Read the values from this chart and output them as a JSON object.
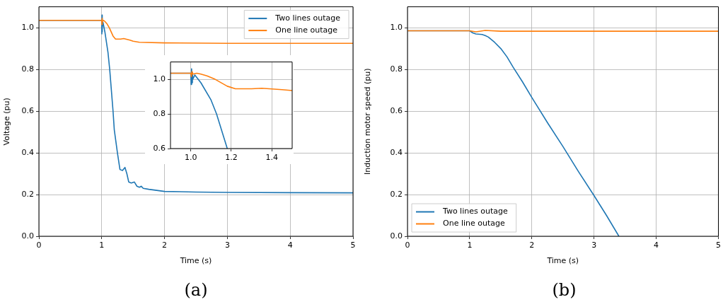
{
  "chart_data": [
    {
      "type": "line",
      "xlabel": "Time (s)",
      "ylabel": "Voltage (pu)",
      "xlim": [
        0,
        5
      ],
      "xticks": [
        0,
        1,
        2,
        3,
        4,
        5
      ],
      "ylim": [
        0,
        1.1
      ],
      "yticks": [
        {
          "value": 0,
          "label": "0.0"
        },
        {
          "value": 0.2,
          "label": "0.2"
        },
        {
          "value": 0.4,
          "label": "0.4"
        },
        {
          "value": 0.6,
          "label": "0.6"
        },
        {
          "value": 0.8,
          "label": "0.8"
        },
        {
          "value": 1,
          "label": "1.0"
        }
      ],
      "grid": true,
      "legend": "top right",
      "annotations": [
        "(a)"
      ],
      "series": [
        {
          "name": "Two lines outage",
          "color": "#1f77b4",
          "x": [
            0,
            1.0,
            1.002,
            1.004,
            1.006,
            1.008,
            1.01,
            1.02,
            1.05,
            1.1,
            1.127,
            1.18,
            1.2,
            1.25,
            1.29,
            1.33,
            1.37,
            1.4,
            1.43,
            1.47,
            1.52,
            1.56,
            1.6,
            1.63,
            1.66,
            1.75,
            2.0,
            2.5,
            3.0,
            4.0,
            5.0
          ],
          "values": [
            1.035,
            1.035,
            0.97,
            1.06,
            0.98,
            1.04,
            1.0,
            1.025,
            0.98,
            0.88,
            0.8,
            0.6,
            0.51,
            0.4,
            0.32,
            0.315,
            0.33,
            0.3,
            0.26,
            0.255,
            0.26,
            0.24,
            0.235,
            0.24,
            0.23,
            0.225,
            0.215,
            0.212,
            0.21,
            0.209,
            0.208
          ]
        },
        {
          "name": "One line outage",
          "color": "#ff7f0e",
          "x": [
            0,
            1.0,
            1.003,
            1.006,
            1.01,
            1.03,
            1.05,
            1.08,
            1.12,
            1.18,
            1.22,
            1.3,
            1.35,
            1.45,
            1.5,
            1.6,
            2.0,
            3.0,
            4.0,
            5.0
          ],
          "values": [
            1.035,
            1.035,
            1.015,
            1.045,
            1.03,
            1.035,
            1.03,
            1.02,
            1.0,
            0.96,
            0.945,
            0.945,
            0.948,
            0.94,
            0.935,
            0.93,
            0.927,
            0.925,
            0.925,
            0.925
          ]
        }
      ]
    },
    {
      "type": "line",
      "xlim": [
        0.9,
        1.5
      ],
      "xticks": [
        {
          "value": 1,
          "label": "1.0"
        },
        {
          "value": 1.2,
          "label": "1.2"
        },
        {
          "value": 1.4,
          "label": "1.4"
        }
      ],
      "ylim": [
        0.6,
        1.1
      ],
      "yticks": [
        {
          "value": 0.6,
          "label": "0.6"
        },
        {
          "value": 0.8,
          "label": "0.8"
        },
        {
          "value": 1,
          "label": "1.0"
        }
      ],
      "grid": true,
      "series": [
        {
          "color": "#1f77b4",
          "x": [
            0.9,
            1.0,
            1.002,
            1.004,
            1.006,
            1.008,
            1.01,
            1.02,
            1.05,
            1.1,
            1.127,
            1.18
          ],
          "values": [
            1.035,
            1.035,
            0.97,
            1.06,
            0.98,
            1.04,
            1.0,
            1.025,
            0.98,
            0.88,
            0.8,
            0.6
          ]
        },
        {
          "color": "#ff7f0e",
          "x": [
            0.9,
            1.0,
            1.003,
            1.006,
            1.01,
            1.03,
            1.05,
            1.08,
            1.12,
            1.18,
            1.22,
            1.3,
            1.35,
            1.45,
            1.5
          ],
          "values": [
            1.035,
            1.035,
            1.015,
            1.045,
            1.03,
            1.035,
            1.03,
            1.02,
            1.0,
            0.96,
            0.945,
            0.945,
            0.948,
            0.94,
            0.935
          ]
        }
      ]
    },
    {
      "type": "line",
      "xlabel": "Time (s)",
      "ylabel": "Induction motor speed (pu)",
      "xlim": [
        0,
        5
      ],
      "xticks": [
        0,
        1,
        2,
        3,
        4,
        5
      ],
      "ylim": [
        0,
        1.1
      ],
      "yticks": [
        {
          "value": 0,
          "label": "0.0"
        },
        {
          "value": 0.2,
          "label": "0.2"
        },
        {
          "value": 0.4,
          "label": "0.4"
        },
        {
          "value": 0.6,
          "label": "0.6"
        },
        {
          "value": 0.8,
          "label": "0.8"
        },
        {
          "value": 1,
          "label": "1.0"
        }
      ],
      "grid": true,
      "legend": "bottom left",
      "annotations": [
        "(b)"
      ],
      "series": [
        {
          "name": "Two lines outage",
          "color": "#1f77b4",
          "x": [
            0,
            1.0,
            1.05,
            1.1,
            1.2,
            1.25,
            1.3,
            1.4,
            1.5,
            1.6,
            1.7,
            1.85,
            2.0,
            2.25,
            2.5,
            2.75,
            3.0,
            3.2,
            3.4
          ],
          "values": [
            0.985,
            0.985,
            0.975,
            0.97,
            0.967,
            0.962,
            0.955,
            0.93,
            0.9,
            0.86,
            0.81,
            0.74,
            0.665,
            0.545,
            0.43,
            0.31,
            0.195,
            0.1,
            0
          ]
        },
        {
          "name": "One line outage",
          "color": "#ff7f0e",
          "x": [
            0,
            1.0,
            1.1,
            1.25,
            1.5,
            2.0,
            3.0,
            4.0,
            5.0
          ],
          "values": [
            0.985,
            0.985,
            0.98,
            0.987,
            0.983,
            0.983,
            0.983,
            0.983,
            0.983
          ]
        }
      ]
    }
  ]
}
